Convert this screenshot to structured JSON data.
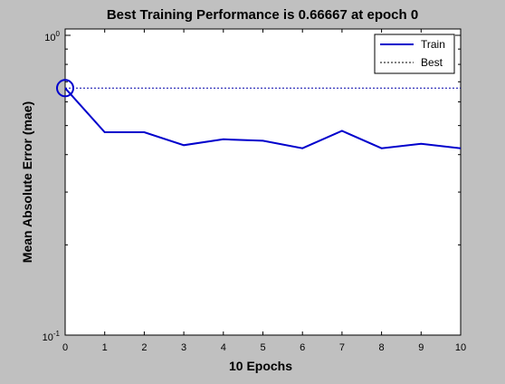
{
  "colors": {
    "figure_background": "#c0c0c0",
    "axes_background": "#ffffff",
    "train_line": "#0000cc",
    "best_line": "#0000aa",
    "best_marker": "#0000cc"
  },
  "chart_data": {
    "type": "line",
    "title": "Best Training Performance is 0.66667 at epoch 0",
    "xlabel": "10 Epochs",
    "ylabel": "Mean Absolute Error  (mae)",
    "xlim": [
      0,
      10
    ],
    "ylim": [
      0.1,
      1.05
    ],
    "yscale": "log",
    "grid": false,
    "xticks": [
      0,
      1,
      2,
      3,
      4,
      5,
      6,
      7,
      8,
      9,
      10
    ],
    "yticks": [
      {
        "value": 1,
        "base": "10",
        "exp": "0"
      },
      {
        "value": 0.1,
        "base": "10",
        "exp": "-1"
      }
    ],
    "legend": {
      "position": "top-right",
      "entries": [
        "Train",
        "Best"
      ]
    },
    "series": [
      {
        "name": "Train",
        "style": "solid",
        "x": [
          0,
          1,
          2,
          3,
          4,
          5,
          6,
          7,
          8,
          9,
          10
        ],
        "y": [
          0.66667,
          0.475,
          0.475,
          0.43,
          0.45,
          0.445,
          0.42,
          0.48,
          0.42,
          0.435,
          0.42
        ]
      },
      {
        "name": "Best",
        "style": "dotted",
        "y": 0.66667
      }
    ],
    "best_marker": {
      "x": 0,
      "y": 0.66667,
      "shape": "circle"
    }
  }
}
